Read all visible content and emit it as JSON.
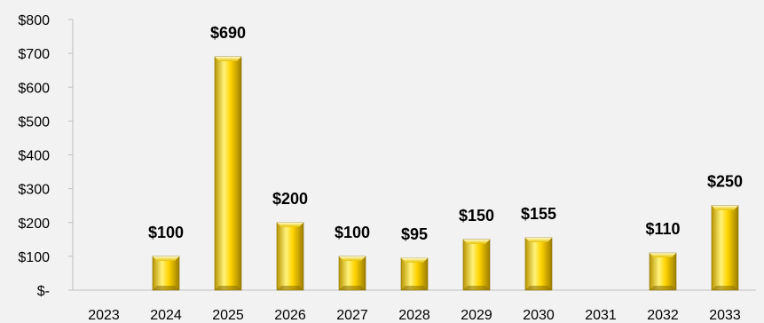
{
  "chart_data": {
    "type": "bar",
    "title": "",
    "xlabel": "",
    "ylabel": "",
    "categories": [
      "2023",
      "2024",
      "2025",
      "2026",
      "2027",
      "2028",
      "2029",
      "2030",
      "2031",
      "2032",
      "2033"
    ],
    "values": [
      0,
      100,
      690,
      200,
      100,
      95,
      150,
      155,
      0,
      110,
      250
    ],
    "data_labels": [
      "",
      "$100",
      "$690",
      "$200",
      "$100",
      "$95",
      "$150",
      "$155",
      "",
      "$110",
      "$250"
    ],
    "y_ticks": [
      0,
      100,
      200,
      300,
      400,
      500,
      600,
      700,
      800
    ],
    "y_tick_labels": [
      "$-",
      "$100",
      "$200",
      "$300",
      "$400",
      "$500",
      "$600",
      "$700",
      "$800"
    ],
    "ylim": [
      0,
      800
    ],
    "grid": false,
    "legend": "none",
    "colors": {
      "background": "#f2f2f2",
      "bar_light": "#fff27a",
      "bar_mid": "#ffd400",
      "bar_dark": "#b89500",
      "bar_stroke": "#8a7000",
      "axis": "#bfbfbf"
    }
  }
}
